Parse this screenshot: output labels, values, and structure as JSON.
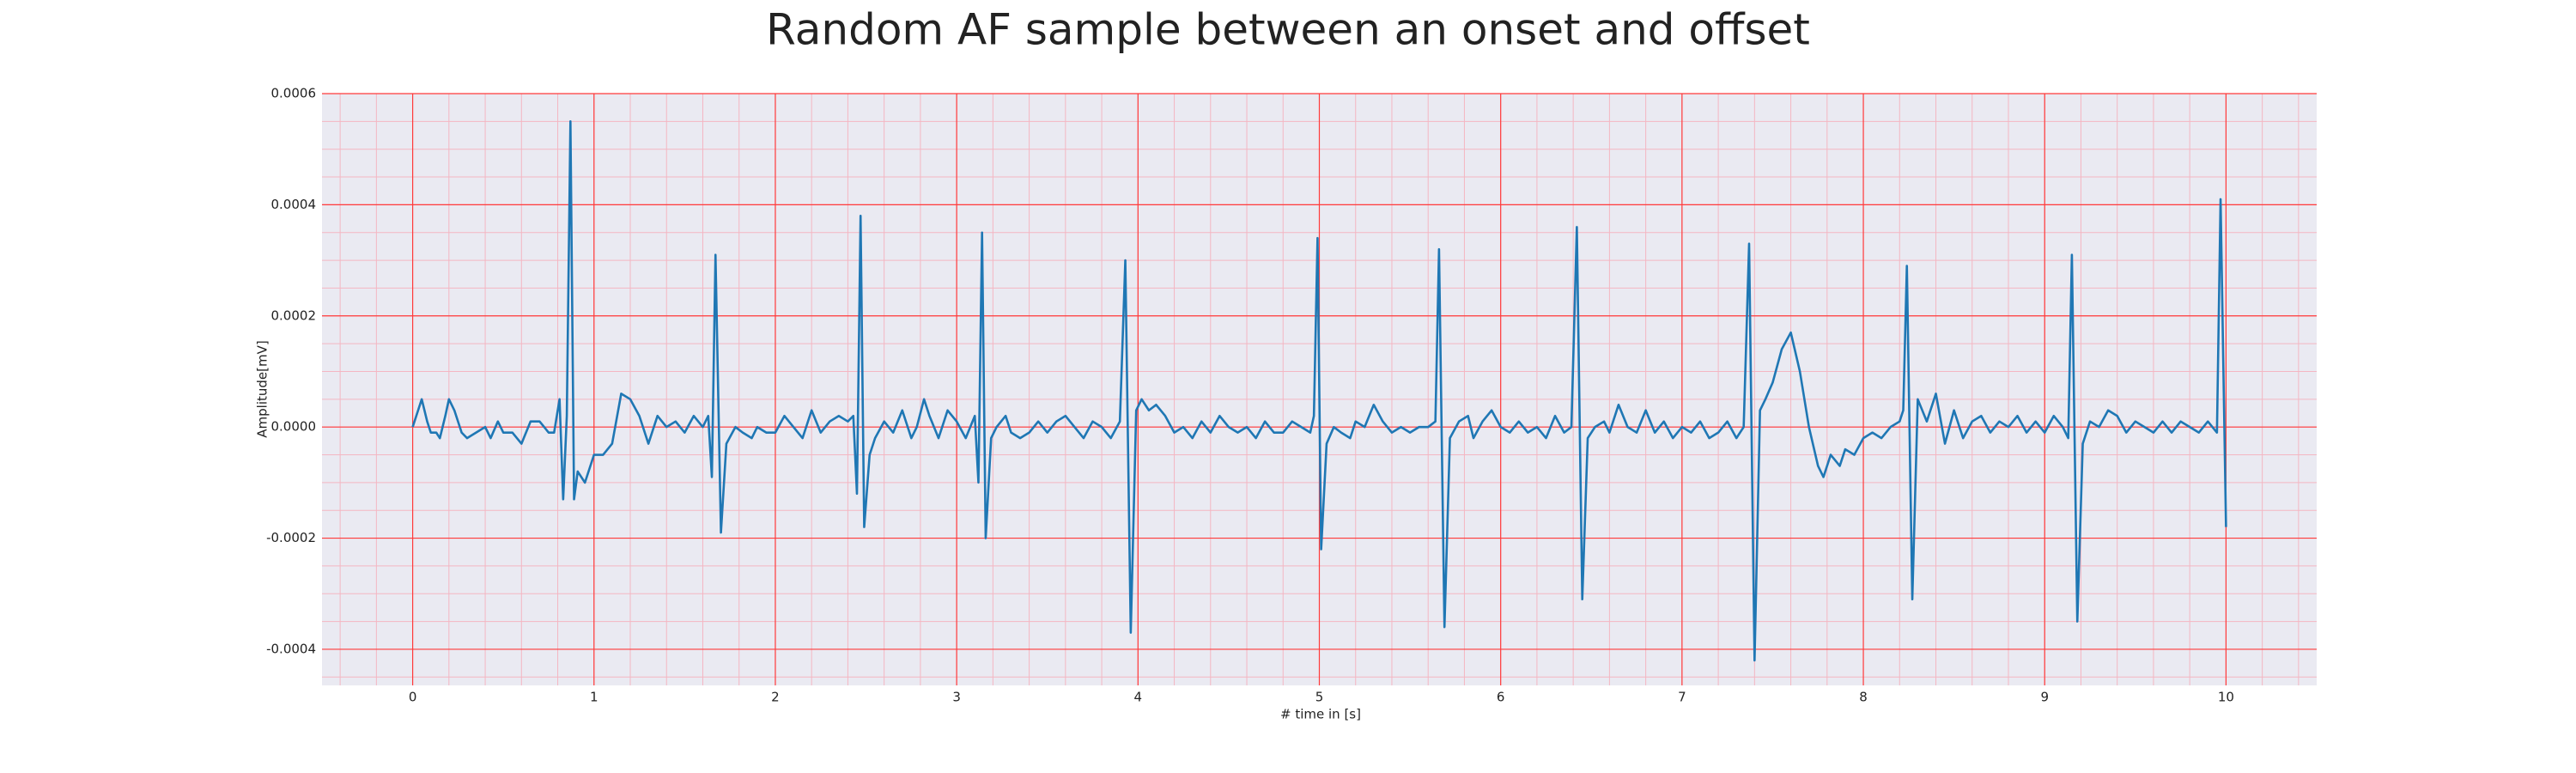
{
  "chart_data": {
    "type": "line",
    "title": "Random AF sample between an onset and offset",
    "xlabel": "# time in [s]",
    "ylabel": "Amplitude[mV]",
    "color": "#1f77b4",
    "xlim": [
      -0.5,
      10.5
    ],
    "ylim": [
      -0.000465,
      0.0006
    ],
    "xticks": [
      0,
      1,
      2,
      3,
      4,
      5,
      6,
      7,
      8,
      9,
      10
    ],
    "yticks": [
      {
        "value": -0.0004,
        "label": "-0.0004"
      },
      {
        "value": -0.0002,
        "label": "-0.0002"
      },
      {
        "value": 0,
        "label": "0.0000"
      },
      {
        "value": 0.0002,
        "label": "0.0002"
      },
      {
        "value": 0.0004,
        "label": "0.0004"
      },
      {
        "value": 0.0006,
        "label": "0.0006"
      }
    ],
    "grid": true,
    "minor_grid": true,
    "x_minor_divisions": 5,
    "y_minor_divisions": 4,
    "x": [
      0,
      0.03,
      0.05,
      0.08,
      0.1,
      0.13,
      0.15,
      0.18,
      0.2,
      0.23,
      0.27,
      0.3,
      0.35,
      0.4,
      0.43,
      0.47,
      0.5,
      0.55,
      0.6,
      0.65,
      0.7,
      0.75,
      0.78,
      0.81,
      0.83,
      0.85,
      0.87,
      0.89,
      0.91,
      0.95,
      1.0,
      1.05,
      1.1,
      1.15,
      1.2,
      1.25,
      1.3,
      1.35,
      1.4,
      1.45,
      1.5,
      1.55,
      1.6,
      1.63,
      1.65,
      1.67,
      1.7,
      1.73,
      1.78,
      1.82,
      1.87,
      1.9,
      1.95,
      2.0,
      2.05,
      2.1,
      2.15,
      2.2,
      2.25,
      2.3,
      2.35,
      2.4,
      2.43,
      2.45,
      2.47,
      2.49,
      2.52,
      2.55,
      2.6,
      2.65,
      2.7,
      2.75,
      2.78,
      2.82,
      2.85,
      2.9,
      2.95,
      3.0,
      3.05,
      3.1,
      3.12,
      3.14,
      3.16,
      3.19,
      3.22,
      3.27,
      3.3,
      3.35,
      3.4,
      3.45,
      3.5,
      3.55,
      3.6,
      3.65,
      3.7,
      3.75,
      3.8,
      3.85,
      3.9,
      3.93,
      3.96,
      3.99,
      4.02,
      4.06,
      4.1,
      4.15,
      4.2,
      4.25,
      4.3,
      4.35,
      4.4,
      4.45,
      4.5,
      4.55,
      4.6,
      4.65,
      4.7,
      4.75,
      4.8,
      4.85,
      4.9,
      4.95,
      4.97,
      4.99,
      5.01,
      5.04,
      5.08,
      5.12,
      5.17,
      5.2,
      5.25,
      5.3,
      5.35,
      5.4,
      5.45,
      5.5,
      5.55,
      5.6,
      5.64,
      5.66,
      5.69,
      5.72,
      5.77,
      5.82,
      5.85,
      5.9,
      5.95,
      6.0,
      6.05,
      6.1,
      6.15,
      6.2,
      6.25,
      6.3,
      6.35,
      6.39,
      6.42,
      6.45,
      6.48,
      6.52,
      6.57,
      6.6,
      6.65,
      6.7,
      6.75,
      6.8,
      6.85,
      6.9,
      6.95,
      7.0,
      7.05,
      7.1,
      7.15,
      7.2,
      7.25,
      7.3,
      7.34,
      7.37,
      7.4,
      7.43,
      7.46,
      7.5,
      7.55,
      7.6,
      7.65,
      7.7,
      7.75,
      7.78,
      7.82,
      7.87,
      7.9,
      7.95,
      8.0,
      8.05,
      8.1,
      8.15,
      8.2,
      8.22,
      8.24,
      8.27,
      8.3,
      8.35,
      8.4,
      8.45,
      8.5,
      8.55,
      8.6,
      8.65,
      8.7,
      8.75,
      8.8,
      8.85,
      8.9,
      8.95,
      9.0,
      9.05,
      9.1,
      9.13,
      9.15,
      9.18,
      9.21,
      9.25,
      9.3,
      9.35,
      9.4,
      9.45,
      9.5,
      9.55,
      9.6,
      9.65,
      9.7,
      9.75,
      9.8,
      9.85,
      9.9,
      9.95,
      9.97,
      10.0
    ],
    "values": [
      0,
      3e-05,
      5e-05,
      1e-05,
      -1e-05,
      -1e-05,
      -2e-05,
      2e-05,
      5e-05,
      3e-05,
      -1e-05,
      -2e-05,
      -1e-05,
      0,
      -2e-05,
      1e-05,
      -1e-05,
      -1e-05,
      -3e-05,
      1e-05,
      1e-05,
      -1e-05,
      -1e-05,
      5e-05,
      -0.00013,
      2e-05,
      0.00055,
      -0.00013,
      -8e-05,
      -0.0001,
      -5e-05,
      -5e-05,
      -3e-05,
      6e-05,
      5e-05,
      2e-05,
      -3e-05,
      2e-05,
      0,
      1e-05,
      -1e-05,
      2e-05,
      0,
      2e-05,
      -9e-05,
      0.00031,
      -0.00019,
      -3e-05,
      0,
      -1e-05,
      -2e-05,
      0,
      -1e-05,
      -1e-05,
      2e-05,
      0,
      -2e-05,
      3e-05,
      -1e-05,
      1e-05,
      2e-05,
      1e-05,
      2e-05,
      -0.00012,
      0.00038,
      -0.00018,
      -5e-05,
      -2e-05,
      1e-05,
      -1e-05,
      3e-05,
      -2e-05,
      0,
      5e-05,
      2e-05,
      -2e-05,
      3e-05,
      1e-05,
      -2e-05,
      2e-05,
      -0.0001,
      0.00035,
      -0.0002,
      -2e-05,
      0,
      2e-05,
      -1e-05,
      -2e-05,
      -1e-05,
      1e-05,
      -1e-05,
      1e-05,
      2e-05,
      0,
      -2e-05,
      1e-05,
      0,
      -2e-05,
      1e-05,
      0.0003,
      -0.00037,
      3e-05,
      5e-05,
      3e-05,
      4e-05,
      2e-05,
      -1e-05,
      0,
      -2e-05,
      1e-05,
      -1e-05,
      2e-05,
      0,
      -1e-05,
      0,
      -2e-05,
      1e-05,
      -1e-05,
      -1e-05,
      1e-05,
      0,
      -1e-05,
      2e-05,
      0.00034,
      -0.00022,
      -3e-05,
      0,
      -1e-05,
      -2e-05,
      1e-05,
      0,
      4e-05,
      1e-05,
      -1e-05,
      0,
      -1e-05,
      0,
      0,
      1e-05,
      0.00032,
      -0.00036,
      -2e-05,
      1e-05,
      2e-05,
      -2e-05,
      1e-05,
      3e-05,
      0,
      -1e-05,
      1e-05,
      -1e-05,
      0,
      -2e-05,
      2e-05,
      -1e-05,
      0,
      0.00036,
      -0.00031,
      -2e-05,
      0,
      1e-05,
      -1e-05,
      4e-05,
      0,
      -1e-05,
      3e-05,
      -1e-05,
      1e-05,
      -2e-05,
      0,
      -1e-05,
      1e-05,
      -2e-05,
      -1e-05,
      1e-05,
      -2e-05,
      0,
      0.00033,
      -0.00042,
      3e-05,
      5e-05,
      8e-05,
      0.00014,
      0.00017,
      0.0001,
      0,
      -7e-05,
      -9e-05,
      -5e-05,
      -7e-05,
      -4e-05,
      -5e-05,
      -2e-05,
      -1e-05,
      -2e-05,
      0,
      1e-05,
      3e-05,
      0.00029,
      -0.00031,
      5e-05,
      1e-05,
      6e-05,
      -3e-05,
      3e-05,
      -2e-05,
      1e-05,
      2e-05,
      -1e-05,
      1e-05,
      0,
      2e-05,
      -1e-05,
      1e-05,
      -1e-05,
      2e-05,
      0,
      -2e-05,
      0.00031,
      -0.00035,
      -3e-05,
      1e-05,
      0,
      3e-05,
      2e-05,
      -1e-05,
      1e-05,
      0,
      -1e-05,
      1e-05,
      -1e-05,
      1e-05,
      0,
      -1e-05,
      1e-05,
      -1e-05,
      0.00041,
      -0.00018
    ]
  }
}
